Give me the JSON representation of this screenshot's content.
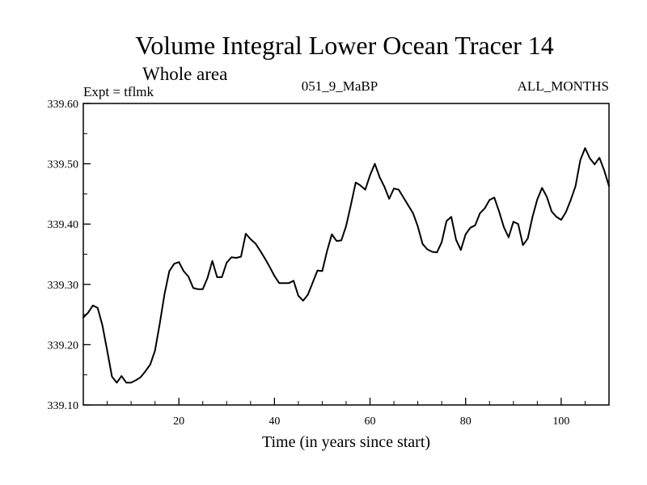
{
  "chart_data": {
    "type": "line",
    "title": "Volume Integral Lower Ocean Tracer 14",
    "subtitle": "Whole area",
    "left_label": "Expt = tflmk",
    "center_label": "051_9_MaBP",
    "right_label": "ALL_MONTHS",
    "xlabel": "Time (in years since start)",
    "ylabel": "",
    "xlim": [
      0,
      110
    ],
    "ylim": [
      339.1,
      339.6
    ],
    "xticks": [
      20,
      40,
      60,
      80,
      100
    ],
    "xtick_labels": [
      "20",
      "40",
      "60",
      "80",
      "100"
    ],
    "yticks": [
      339.1,
      339.2,
      339.3,
      339.4,
      339.5,
      339.6
    ],
    "ytick_labels": [
      "339.10",
      "339.20",
      "339.30",
      "339.40",
      "339.50",
      "339.60"
    ],
    "grid": false,
    "series": [
      {
        "name": "Lower Ocean Tracer 14",
        "x": [
          0,
          1,
          2,
          3,
          4,
          5,
          6,
          7,
          8,
          9,
          10,
          11,
          12,
          13,
          14,
          15,
          16,
          17,
          18,
          19,
          20,
          21,
          22,
          23,
          24,
          25,
          26,
          27,
          28,
          29,
          30,
          31,
          32,
          33,
          34,
          35,
          36,
          37,
          38,
          39,
          40,
          41,
          42,
          43,
          44,
          45,
          46,
          47,
          48,
          49,
          50,
          51,
          52,
          53,
          54,
          55,
          56,
          57,
          58,
          59,
          60,
          61,
          62,
          63,
          64,
          65,
          66,
          67,
          68,
          69,
          70,
          71,
          72,
          73,
          74,
          75,
          76,
          77,
          78,
          79,
          80,
          81,
          82,
          83,
          84,
          85,
          86,
          87,
          88,
          89,
          90,
          91,
          92,
          93,
          94,
          95,
          96,
          97,
          98,
          99,
          100,
          101,
          102,
          103,
          104,
          105,
          106,
          107,
          108,
          109,
          110
        ],
        "y": [
          339.245,
          339.253,
          339.265,
          339.261,
          339.232,
          339.19,
          339.147,
          339.137,
          339.148,
          339.137,
          339.137,
          339.141,
          339.146,
          339.156,
          339.167,
          339.19,
          339.235,
          339.284,
          339.322,
          339.334,
          339.337,
          339.322,
          339.313,
          339.294,
          339.292,
          339.292,
          339.311,
          339.339,
          339.312,
          339.312,
          339.336,
          339.345,
          339.344,
          339.346,
          339.384,
          339.375,
          339.368,
          339.356,
          339.343,
          339.329,
          339.314,
          339.302,
          339.302,
          339.302,
          339.306,
          339.281,
          339.273,
          339.283,
          339.303,
          339.323,
          339.322,
          339.355,
          339.383,
          339.372,
          339.373,
          339.397,
          339.432,
          339.469,
          339.464,
          339.457,
          339.481,
          339.5,
          339.478,
          339.462,
          339.442,
          339.459,
          339.457,
          339.444,
          339.431,
          339.418,
          339.396,
          339.367,
          339.358,
          339.354,
          339.353,
          339.37,
          339.405,
          339.412,
          339.374,
          339.357,
          339.383,
          339.394,
          339.398,
          339.418,
          339.426,
          339.44,
          339.444,
          339.421,
          339.395,
          339.378,
          339.404,
          339.4,
          339.365,
          339.376,
          339.412,
          339.441,
          339.46,
          339.445,
          339.421,
          339.412,
          339.407,
          339.42,
          339.44,
          339.463,
          339.506,
          339.526,
          339.509,
          339.499,
          339.51,
          339.489,
          339.463
        ]
      }
    ]
  }
}
